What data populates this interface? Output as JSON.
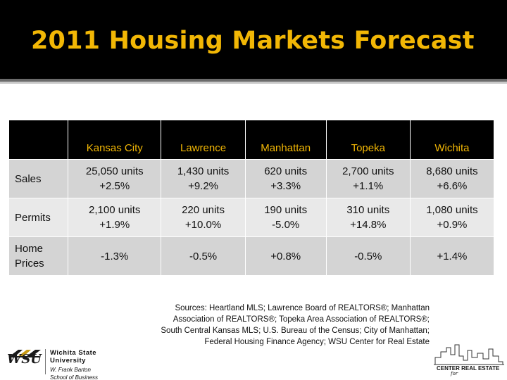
{
  "slide": {
    "title": "2011 Housing Markets Forecast"
  },
  "table": {
    "columns": [
      "Kansas City",
      "Lawrence",
      "Manhattan",
      "Topeka",
      "Wichita"
    ],
    "rows": [
      {
        "label": [
          "Sales"
        ],
        "cells": [
          [
            "25,050 units",
            "+2.5%"
          ],
          [
            "1,430 units",
            "+9.2%"
          ],
          [
            "620 units",
            "+3.3%"
          ],
          [
            "2,700 units",
            "+1.1%"
          ],
          [
            "8,680 units",
            "+6.6%"
          ]
        ]
      },
      {
        "label": [
          "Permits"
        ],
        "cells": [
          [
            "2,100 units",
            "+1.9%"
          ],
          [
            "220 units",
            "+10.0%"
          ],
          [
            "190 units",
            "-5.0%"
          ],
          [
            "310 units",
            "+14.8%"
          ],
          [
            "1,080 units",
            "+0.9%"
          ]
        ]
      },
      {
        "label": [
          "Home",
          "Prices"
        ],
        "cells": [
          [
            "-1.3%"
          ],
          [
            "-0.5%"
          ],
          [
            "+0.8%"
          ],
          [
            "-0.5%"
          ],
          [
            "+1.4%"
          ]
        ]
      }
    ]
  },
  "sources": [
    "Sources: Heartland MLS; Lawrence Board of REALTORS®; Manhattan",
    "Association of REALTORS®; Topeka Area Association of REALTORS®;",
    "South Central Kansas MLS; U.S. Bureau of the Census; City of Manhattan;",
    "Federal Housing Finance Agency; WSU Center for Real Estate"
  ],
  "logos": {
    "wsu": {
      "mark": "WSU",
      "name_line1": "Wichita State",
      "name_line2": "University",
      "sub_line1": "W. Frank Barton",
      "sub_line2": "School of Business"
    },
    "center": {
      "text": "CENTER   REAL ESTATE",
      "for": "for"
    }
  },
  "colors": {
    "header_bg": "#000000",
    "title": "#f2b705",
    "table_header_text": "#f2b705",
    "row_odd": "#d4d4d4",
    "row_even": "#e9e9e9"
  }
}
